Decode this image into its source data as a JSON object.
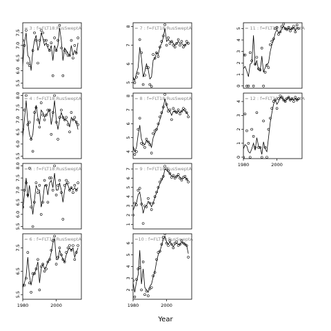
{
  "figure": {
    "xlabel": "Year"
  },
  "chart_data": {
    "type": "line",
    "xlabel": "Year",
    "xlim": [
      1980,
      2015
    ],
    "x_ticks": [
      1980,
      2000
    ],
    "panels": [
      {
        "label": "= 3 : f=FLT18:RusSweptA",
        "ylim": [
          5.3,
          7.9
        ],
        "yticks": [
          5.5,
          6.0,
          6.5,
          7.0,
          7.5
        ],
        "x": [
          1979,
          1980,
          1981,
          1982,
          1983,
          1984,
          1985,
          1986,
          1987,
          1988,
          1989,
          1990,
          1991,
          1992,
          1993,
          1994,
          1995,
          1996,
          1997,
          1998,
          1999,
          2000,
          2001,
          2002,
          2003,
          2004,
          2005,
          2006,
          2007,
          2008,
          2009,
          2010,
          2011,
          2012,
          2013
        ],
        "points": [
          6.2,
          7.2,
          7.0,
          7.6,
          6.3,
          6.2,
          5.2,
          6.8,
          7.5,
          7.2,
          6.3,
          7.2,
          7.6,
          7.5,
          7.2,
          7.2,
          7.0,
          6.8,
          7.1,
          5.8,
          7.3,
          6.8,
          7.2,
          7.8,
          6.9,
          5.8,
          6.8,
          6.7,
          6.6,
          6.6,
          7.2,
          6.5,
          7.0,
          6.7,
          7.3
        ],
        "line": [
          6.0,
          6.2,
          7.1,
          7.5,
          6.6,
          6.5,
          6.0,
          6.8,
          7.2,
          7.4,
          6.8,
          7.0,
          7.5,
          7.3,
          7.0,
          7.1,
          6.9,
          6.8,
          7.0,
          6.4,
          7.0,
          6.8,
          7.0,
          7.7,
          7.2,
          6.4,
          6.9,
          6.8,
          6.7,
          6.6,
          7.0,
          6.6,
          6.8,
          6.7,
          7.1
        ]
      },
      {
        "label": "= 4 : f=FLT18:RusSweptA",
        "ylim": [
          5.4,
          8.1
        ],
        "yticks": [
          5.5,
          6.0,
          6.5,
          7.0,
          7.5,
          8.0
        ],
        "x": [
          1979,
          1980,
          1981,
          1982,
          1983,
          1984,
          1985,
          1986,
          1987,
          1988,
          1989,
          1990,
          1991,
          1992,
          1993,
          1994,
          1995,
          1996,
          1997,
          1998,
          1999,
          2000,
          2001,
          2002,
          2003,
          2004,
          2005,
          2006,
          2007,
          2008,
          2009,
          2010,
          2011,
          2012,
          2013
        ],
        "points": [
          6.5,
          6.6,
          7.4,
          8.0,
          6.8,
          6.9,
          6.2,
          5.7,
          7.3,
          7.5,
          7.0,
          6.7,
          7.7,
          7.2,
          7.0,
          7.2,
          7.4,
          7.4,
          6.4,
          7.3,
          8.0,
          6.9,
          6.2,
          7.1,
          7.4,
          7.1,
          7.0,
          7.1,
          6.8,
          6.5,
          7.3,
          7.0,
          7.1,
          6.9,
          6.8
        ],
        "line": [
          6.0,
          6.3,
          7.0,
          7.8,
          6.9,
          6.4,
          6.2,
          6.4,
          7.2,
          7.6,
          7.1,
          6.8,
          7.4,
          7.3,
          7.1,
          7.2,
          7.3,
          7.4,
          6.8,
          7.2,
          7.8,
          7.0,
          6.6,
          7.0,
          7.3,
          7.1,
          7.0,
          7.0,
          6.9,
          6.7,
          7.1,
          7.0,
          7.0,
          6.9,
          6.6
        ]
      },
      {
        "label": "= 5 : f=FLT18:RusSweptA",
        "ylim": [
          5.4,
          8.1
        ],
        "yticks": [
          5.5,
          6.0,
          6.5,
          7.0,
          7.5,
          8.0
        ],
        "x": [
          1979,
          1980,
          1981,
          1982,
          1983,
          1984,
          1985,
          1986,
          1987,
          1988,
          1989,
          1990,
          1991,
          1992,
          1993,
          1994,
          1995,
          1996,
          1997,
          1998,
          1999,
          2000,
          2001,
          2002,
          2003,
          2004,
          2005,
          2006,
          2007,
          2008,
          2009,
          2010,
          2011,
          2012,
          2013
        ],
        "points": [
          6.6,
          6.3,
          7.0,
          7.3,
          6.8,
          7.9,
          6.3,
          5.5,
          6.5,
          7.3,
          6.9,
          7.2,
          6.0,
          6.5,
          7.4,
          7.2,
          6.5,
          7.5,
          7.5,
          7.0,
          8.0,
          6.8,
          7.2,
          7.4,
          6.9,
          5.8,
          7.2,
          7.4,
          7.3,
          7.0,
          7.1,
          6.9,
          7.2,
          7.0,
          7.3
        ],
        "line": [
          6.2,
          6.2,
          6.8,
          7.5,
          6.7,
          7.2,
          6.6,
          6.0,
          6.6,
          7.2,
          7.0,
          7.0,
          6.3,
          6.6,
          7.2,
          7.2,
          6.8,
          7.3,
          7.4,
          7.1,
          7.7,
          7.0,
          7.0,
          7.3,
          7.0,
          6.5,
          7.0,
          7.3,
          7.2,
          7.0,
          7.1,
          7.0,
          7.1,
          7.0,
          7.1
        ]
      },
      {
        "label": "= 6 : f=FLT18:RusSweptA",
        "ylim": [
          5.3,
          8.1
        ],
        "yticks": [
          5.5,
          6.5,
          7.5
        ],
        "x": [
          1979,
          1980,
          1981,
          1982,
          1983,
          1984,
          1985,
          1986,
          1987,
          1988,
          1989,
          1990,
          1991,
          1992,
          1993,
          1994,
          1995,
          1996,
          1997,
          1998,
          1999,
          2000,
          2001,
          2002,
          2003,
          2004,
          2005,
          2006,
          2007,
          2008,
          2009,
          2010,
          2011,
          2012,
          2013
        ],
        "points": [
          5.4,
          5.9,
          5.9,
          6.2,
          7.3,
          6.0,
          5.6,
          6.4,
          6.4,
          6.6,
          7.0,
          5.7,
          6.7,
          6.8,
          6.5,
          6.6,
          6.9,
          7.0,
          7.4,
          7.8,
          8.0,
          6.8,
          7.1,
          7.5,
          7.2,
          7.0,
          6.9,
          7.3,
          7.5,
          7.6,
          7.4,
          7.6,
          7.0,
          7.3,
          7.6
        ],
        "line": [
          5.5,
          5.8,
          6.0,
          6.3,
          7.1,
          6.3,
          5.9,
          6.3,
          6.4,
          6.6,
          6.9,
          6.0,
          6.6,
          6.8,
          6.6,
          6.7,
          6.9,
          7.0,
          7.3,
          7.7,
          7.9,
          7.0,
          7.0,
          7.4,
          7.2,
          7.0,
          6.9,
          7.2,
          7.4,
          7.5,
          7.4,
          7.5,
          7.1,
          7.3,
          7.5
        ]
      },
      {
        "label": "= 7 : f=FLT18:RusSweptA",
        "ylim": [
          4.7,
          8.2
        ],
        "yticks": [
          5.0,
          6.0,
          7.0,
          8.0
        ],
        "x": [
          1979,
          1980,
          1981,
          1982,
          1983,
          1984,
          1985,
          1986,
          1987,
          1988,
          1989,
          1990,
          1991,
          1992,
          1993,
          1994,
          1995,
          1996,
          1997,
          1998,
          1999,
          2000,
          2001,
          2002,
          2003,
          2004,
          2005,
          2006,
          2007,
          2008,
          2009,
          2010,
          2011,
          2012,
          2013
        ],
        "points": [
          6.4,
          5.2,
          5.0,
          5.3,
          5.5,
          7.3,
          6.6,
          4.9,
          5.4,
          5.8,
          5.8,
          4.9,
          4.8,
          6.5,
          6.3,
          6.6,
          6.4,
          6.9,
          7.2,
          7.5,
          8.1,
          7.0,
          7.4,
          7.1,
          7.2,
          7.0,
          6.9,
          7.1,
          7.3,
          7.0,
          7.2,
          6.9,
          7.0,
          7.2,
          7.1
        ],
        "line": [
          5.8,
          5.3,
          5.1,
          5.5,
          5.8,
          6.9,
          6.3,
          5.3,
          5.6,
          6.0,
          5.7,
          5.2,
          5.3,
          6.2,
          6.3,
          6.6,
          6.5,
          6.9,
          7.1,
          7.4,
          7.9,
          7.2,
          7.3,
          7.2,
          7.2,
          7.1,
          7.0,
          7.1,
          7.2,
          7.1,
          7.1,
          7.0,
          7.0,
          7.1,
          7.1
        ]
      },
      {
        "label": "= 8 : f=FLT18:RusSweptA",
        "ylim": [
          3.5,
          8.2
        ],
        "yticks": [
          4,
          5,
          6,
          7,
          8
        ],
        "x": [
          1979,
          1980,
          1981,
          1982,
          1983,
          1984,
          1985,
          1986,
          1987,
          1988,
          1989,
          1990,
          1991,
          1992,
          1993,
          1994,
          1995,
          1996,
          1997,
          1998,
          1999,
          2000,
          2001,
          2002,
          2003,
          2004,
          2005,
          2006,
          2007,
          2008,
          2009,
          2010,
          2011,
          2012,
          2013
        ],
        "points": [
          5.1,
          4.2,
          3.8,
          4.0,
          5.6,
          6.4,
          4.6,
          4.5,
          4.3,
          4.9,
          4.7,
          4.5,
          3.9,
          5.3,
          5.5,
          5.6,
          6.0,
          6.5,
          6.8,
          7.2,
          8.1,
          7.4,
          6.9,
          7.0,
          6.3,
          7.1,
          6.9,
          6.8,
          7.0,
          6.7,
          6.9,
          7.1,
          7.0,
          6.8,
          6.5
        ],
        "line": [
          4.9,
          4.4,
          4.0,
          4.3,
          5.2,
          5.9,
          4.9,
          4.6,
          4.5,
          4.8,
          4.7,
          4.6,
          4.3,
          5.0,
          5.3,
          5.6,
          5.9,
          6.3,
          6.7,
          7.1,
          7.8,
          7.3,
          7.0,
          6.9,
          6.6,
          6.9,
          6.9,
          6.8,
          6.9,
          6.8,
          6.9,
          7.0,
          6.9,
          6.8,
          6.6
        ]
      },
      {
        "label": "= 9 : f=FLT18:RusSweptA",
        "ylim": [
          0.5,
          7.6
        ],
        "yticks": [
          1,
          2,
          3,
          4,
          5,
          6,
          7
        ],
        "x": [
          1979,
          1980,
          1981,
          1982,
          1983,
          1984,
          1985,
          1986,
          1987,
          1988,
          1989,
          1990,
          1991,
          1992,
          1993,
          1994,
          1995,
          1996,
          1997,
          1998,
          1999,
          2000,
          2001,
          2002,
          2003,
          2004,
          2005,
          2006,
          2007,
          2008,
          2009,
          2010,
          2011,
          2012,
          2013
        ],
        "points": [
          4.5,
          2.0,
          3.3,
          3.1,
          4.7,
          4.9,
          3.2,
          1.1,
          3.0,
          2.9,
          3.8,
          3.3,
          2.6,
          3.3,
          4.0,
          4.5,
          5.0,
          5.6,
          5.9,
          6.2,
          7.3,
          7.0,
          6.8,
          6.5,
          6.1,
          6.3,
          6.0,
          6.2,
          6.4,
          6.0,
          5.8,
          6.1,
          6.2,
          5.9,
          5.6
        ],
        "line": [
          4.0,
          2.5,
          3.0,
          3.3,
          4.2,
          4.5,
          3.4,
          2.2,
          2.9,
          3.0,
          3.5,
          3.3,
          2.9,
          3.3,
          3.9,
          4.4,
          4.9,
          5.4,
          5.8,
          6.1,
          7.0,
          6.9,
          6.7,
          6.5,
          6.2,
          6.2,
          6.1,
          6.2,
          6.3,
          6.1,
          5.9,
          6.0,
          6.1,
          5.9,
          5.7
        ]
      },
      {
        "label": "=10 : f=FLT18:RusSweptA",
        "ylim": [
          1.2,
          6.8
        ],
        "yticks": [
          2,
          3,
          4,
          5,
          6
        ],
        "x": [
          1979,
          1980,
          1981,
          1982,
          1983,
          1984,
          1985,
          1986,
          1987,
          1988,
          1989,
          1990,
          1991,
          1992,
          1993,
          1994,
          1995,
          1996,
          1997,
          1998,
          1999,
          2000,
          2001,
          2002,
          2003,
          2004,
          2005,
          2006,
          2007,
          2008,
          2009,
          2010,
          2011,
          2012,
          2013
        ],
        "points": [
          3.0,
          2.8,
          1.4,
          2.9,
          3.8,
          3.9,
          2.0,
          4.4,
          1.6,
          1.9,
          1.5,
          2.1,
          2.2,
          3.2,
          3.5,
          4.6,
          5.2,
          5.3,
          5.9,
          6.5,
          6.8,
          6.0,
          5.8,
          6.2,
          5.9,
          5.6,
          6.0,
          6.1,
          5.8,
          5.9,
          6.2,
          6.0,
          5.9,
          5.8,
          4.8
        ],
        "line": [
          2.9,
          2.6,
          1.8,
          2.7,
          3.3,
          5.4,
          2.5,
          3.8,
          2.2,
          2.0,
          1.8,
          2.3,
          2.5,
          3.1,
          3.6,
          4.4,
          5.0,
          5.3,
          5.8,
          6.3,
          6.6,
          6.1,
          5.9,
          6.1,
          5.9,
          5.7,
          5.9,
          6.0,
          5.9,
          5.9,
          6.1,
          6.0,
          5.9,
          5.8,
          5.1
        ]
      },
      {
        "label": "= 11 : f=FLT18:RusSweptA",
        "ylim": [
          -0.2,
          5.5
        ],
        "yticks": [
          0,
          1,
          2,
          3,
          4,
          5
        ],
        "x": [
          1979,
          1980,
          1981,
          1982,
          1983,
          1984,
          1985,
          1986,
          1987,
          1988,
          1989,
          1990,
          1991,
          1992,
          1993,
          1994,
          1995,
          1996,
          1997,
          1998,
          1999,
          2000,
          2001,
          2002,
          2003,
          2004,
          2005,
          2006,
          2007,
          2008,
          2009,
          2010,
          2011,
          2012,
          2013
        ],
        "points": [
          2.7,
          2.7,
          2.7,
          0.0,
          0.0,
          2.9,
          2.2,
          0.0,
          1.9,
          2.5,
          1.5,
          1.4,
          3.3,
          0.0,
          1.2,
          1.8,
          1.6,
          3.6,
          3.9,
          4.1,
          5.0,
          5.1,
          4.5,
          4.7,
          5.2,
          5.4,
          5.0,
          4.9,
          5.1,
          4.8,
          5.0,
          5.2,
          4.7,
          5.3,
          5.0
        ],
        "line": [
          1.6,
          1.5,
          1.7,
          1.3,
          0.8,
          1.9,
          2.0,
          4.4,
          1.8,
          2.2,
          1.4,
          1.3,
          2.6,
          1.2,
          1.6,
          1.9,
          2.0,
          3.0,
          3.6,
          4.0,
          4.6,
          4.9,
          4.6,
          4.7,
          5.0,
          5.2,
          5.0,
          4.9,
          5.0,
          4.9,
          5.0,
          5.1,
          4.8,
          5.1,
          5.0
        ]
      },
      {
        "label": "= 12 : f=FLT18:RusSweptA",
        "ylim": [
          -0.1,
          4.6
        ],
        "yticks": [
          0,
          1,
          2,
          3,
          4
        ],
        "x": [
          1979,
          1980,
          1981,
          1982,
          1983,
          1984,
          1985,
          1986,
          1987,
          1988,
          1989,
          1990,
          1991,
          1992,
          1993,
          1994,
          1995,
          1996,
          1997,
          1998,
          1999,
          2000,
          2001,
          2002,
          2003,
          2004,
          2005,
          2006,
          2007,
          2008,
          2009,
          2010,
          2011,
          2012,
          2013
        ],
        "points": [
          1.5,
          0.0,
          3.1,
          1.9,
          1.0,
          0.0,
          2.0,
          1.5,
          0.7,
          3.2,
          0.7,
          0.7,
          0.0,
          2.6,
          0.7,
          0.0,
          2.0,
          2.8,
          3.5,
          4.0,
          4.1,
          3.5,
          4.2,
          4.4,
          4.3,
          4.1,
          4.0,
          4.2,
          4.3,
          4.1,
          4.2,
          4.0,
          4.3,
          4.1,
          4.2
        ],
        "line": [
          0.9,
          0.6,
          0.9,
          0.8,
          0.4,
          0.3,
          0.6,
          1.0,
          0.5,
          1.4,
          0.8,
          0.7,
          0.2,
          1.1,
          0.6,
          0.4,
          1.4,
          2.5,
          3.2,
          3.8,
          4.1,
          3.8,
          4.0,
          4.3,
          4.3,
          4.1,
          4.0,
          4.2,
          4.3,
          4.1,
          4.2,
          4.1,
          4.2,
          4.1,
          4.2
        ]
      }
    ]
  }
}
